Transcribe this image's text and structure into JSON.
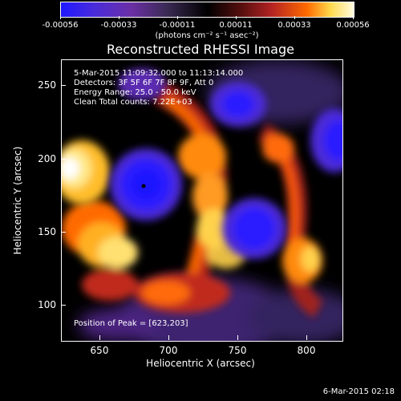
{
  "colorbar": {
    "labels": [
      "-0.00056",
      "-0.00033",
      "-0.00011",
      "0.00011",
      "0.00033",
      "0.00056"
    ],
    "units": "(photons cm⁻² s⁻¹ asec⁻²)"
  },
  "plot": {
    "title": "Reconstructed RHESSI Image",
    "xlabel": "Heliocentric X (arcsec)",
    "ylabel": "Heliocentric Y (arcsec)",
    "xticks": [
      "650",
      "700",
      "750",
      "800"
    ],
    "yticks": [
      "100",
      "150",
      "200",
      "250"
    ],
    "info_lines": [
      "5-Mar-2015 11:09:32.000 to 11:13:14.000",
      "Detectors: 3F 5F 6F 7F 8F 9F, Att 0",
      "Energy Range: 25.0 - 50.0 keV",
      "Clean    Total counts: 7.22E+03"
    ],
    "peak_label": "Position of Peak = [623,203]"
  },
  "footer": {
    "date": "6-Mar-2015 02:18"
  }
}
